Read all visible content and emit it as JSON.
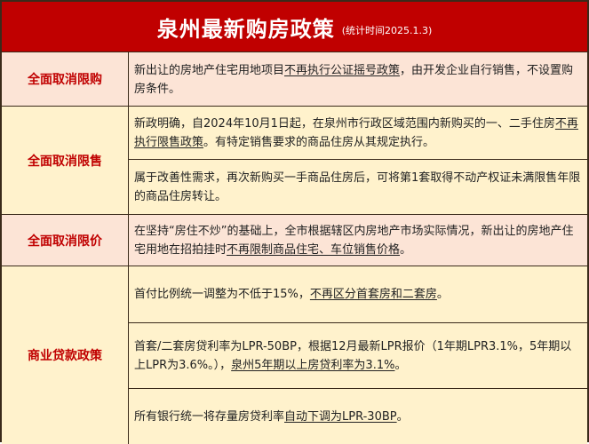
{
  "title": {
    "main": "泉州最新购房政策",
    "sub": "(统计时间2025.1.3)"
  },
  "colors": {
    "header": "#c00000",
    "label_text": "#c00000",
    "pink_row": "#fce4d6",
    "yellow_row": "#fff2cc"
  },
  "rows": [
    {
      "label": "全面取消限购",
      "items": [
        {
          "pre": "新出让的房地产住宅用地项目",
          "u": "不再执行公证摇号政策",
          "post": "，由开发企业自行销售，不设置购房条件。"
        }
      ]
    },
    {
      "label": "全面取消限售",
      "items": [
        {
          "pre": "新政明确，自2024年10月1日起，在泉州市行政区域范围内新购买的一、二手住房",
          "u": "不再执行限售政策",
          "post": "。有特定销售要求的商品住房从其规定执行。"
        },
        {
          "pre": "属于改善性需求，再次新购买一手商品住房后，可将第1套取得不动产权证未满限售年限的商品住房转让。",
          "u": "",
          "post": ""
        }
      ]
    },
    {
      "label": "全面取消限价",
      "items": [
        {
          "pre": "在坚持“房住不炒”的基础上，全市根据辖区内房地产市场实际情况，新出让的房地产住宅用地在招拍挂时",
          "u": "不再限制商品住宅、车位销售价格",
          "post": "。"
        }
      ]
    },
    {
      "label": "商业贷款政策",
      "items": [
        {
          "pre": "首付比例统一调整为不低于15%，",
          "u": "不再区分首套房和二套房",
          "post": "。"
        },
        {
          "pre": "首套/二套房贷利率为LPR-50BP，根据12月最新LPR报价（1年期LPR3.1%，5年期以上LPR为3.6%。），",
          "u": "泉州5年期以上房贷利率为3.1%",
          "post": "。"
        },
        {
          "pre": "所有银行统一将存量房贷利率",
          "u": "自动下调为LPR-30BP",
          "post": "。"
        }
      ]
    }
  ]
}
